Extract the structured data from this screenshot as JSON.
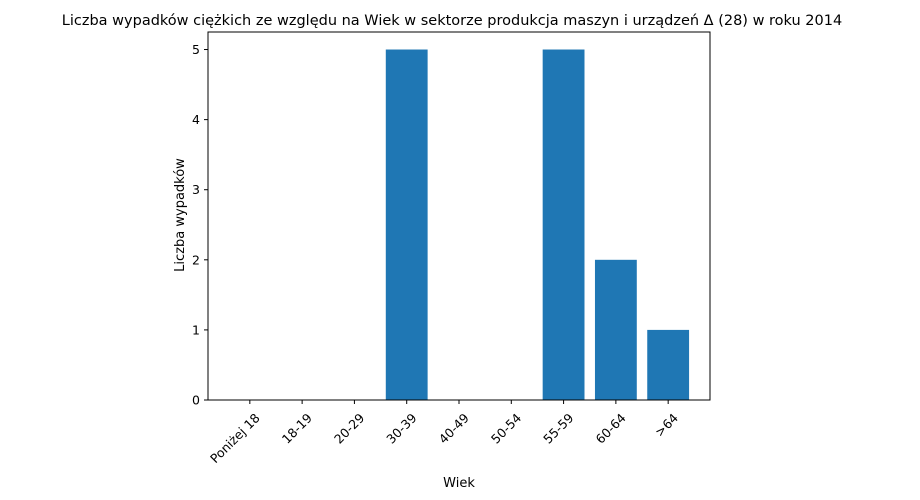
{
  "chart_data": {
    "type": "bar",
    "title": "Liczba wypadków ciężkich ze względu na Wiek w sektorze produkcja maszyn i urządzeń Δ (28) w roku 2014",
    "xlabel": "Wiek",
    "ylabel": "Liczba wypadków",
    "categories": [
      "Poniżej 18",
      "18-19",
      "20-29",
      "30-39",
      "40-49",
      "50-54",
      "55-59",
      "60-64",
      ">64"
    ],
    "values": [
      0,
      0,
      0,
      5,
      0,
      0,
      5,
      2,
      1
    ],
    "ylim": [
      0,
      5.25
    ],
    "yticks": [
      0,
      1,
      2,
      3,
      4,
      5
    ],
    "grid": false,
    "bar_color": "#1f77b4"
  }
}
